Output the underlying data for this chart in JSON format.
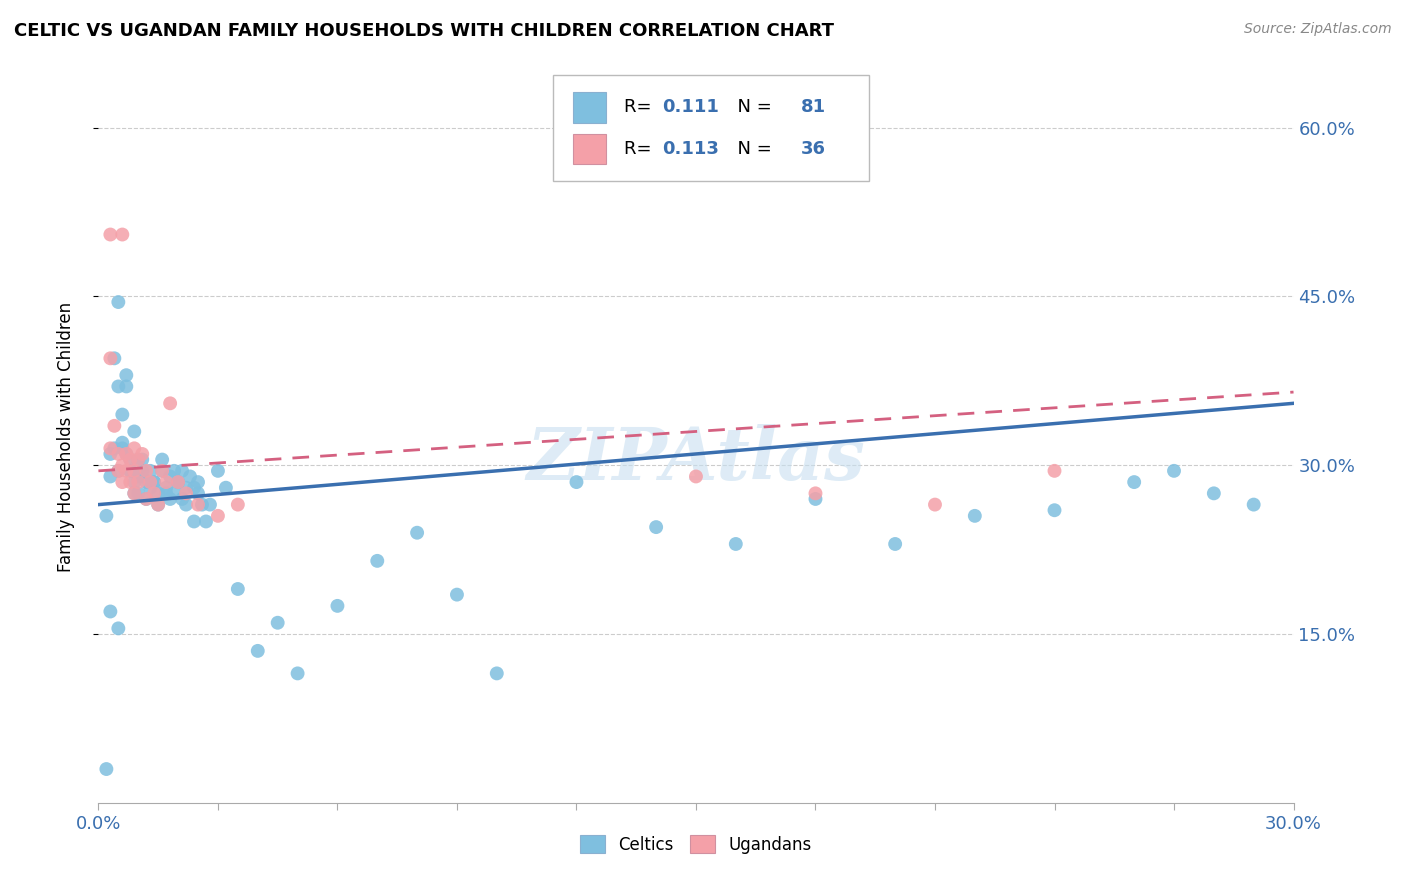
{
  "title": "CELTIC VS UGANDAN FAMILY HOUSEHOLDS WITH CHILDREN CORRELATION CHART",
  "source": "Source: ZipAtlas.com",
  "ylabel": "Family Households with Children",
  "xmin": 0.0,
  "xmax": 0.3,
  "ymin": 0.0,
  "ymax": 0.65,
  "watermark": "ZIPAtlas",
  "celtic_color": "#7fbfdf",
  "ugandan_color": "#f4a0a8",
  "celtic_line_color": "#3a6faf",
  "ugandan_line_color": "#d46080",
  "celtic_R": 0.111,
  "celtic_N": 81,
  "ugandan_R": 0.113,
  "ugandan_N": 36,
  "celtic_line_x0": 0.0,
  "celtic_line_x1": 0.3,
  "celtic_line_y0": 0.265,
  "celtic_line_y1": 0.355,
  "ugandan_line_x0": 0.0,
  "ugandan_line_x1": 0.3,
  "ugandan_line_y0": 0.295,
  "ugandan_line_y1": 0.365,
  "celtic_points_x": [
    0.002,
    0.005,
    0.007,
    0.004,
    0.003,
    0.003,
    0.005,
    0.006,
    0.007,
    0.008,
    0.004,
    0.006,
    0.005,
    0.007,
    0.006,
    0.008,
    0.009,
    0.008,
    0.009,
    0.01,
    0.009,
    0.01,
    0.011,
    0.01,
    0.011,
    0.012,
    0.011,
    0.013,
    0.012,
    0.014,
    0.013,
    0.015,
    0.014,
    0.015,
    0.016,
    0.017,
    0.016,
    0.018,
    0.017,
    0.019,
    0.018,
    0.02,
    0.019,
    0.021,
    0.02,
    0.022,
    0.021,
    0.023,
    0.022,
    0.024,
    0.025,
    0.026,
    0.024,
    0.025,
    0.027,
    0.028,
    0.03,
    0.032,
    0.035,
    0.04,
    0.045,
    0.05,
    0.06,
    0.07,
    0.08,
    0.09,
    0.1,
    0.12,
    0.14,
    0.16,
    0.18,
    0.2,
    0.22,
    0.24,
    0.26,
    0.27,
    0.28,
    0.29,
    0.005,
    0.003,
    0.002
  ],
  "celtic_points_y": [
    0.03,
    0.445,
    0.37,
    0.315,
    0.31,
    0.29,
    0.295,
    0.315,
    0.38,
    0.295,
    0.395,
    0.32,
    0.37,
    0.31,
    0.345,
    0.305,
    0.33,
    0.295,
    0.285,
    0.305,
    0.275,
    0.29,
    0.305,
    0.275,
    0.29,
    0.285,
    0.295,
    0.28,
    0.27,
    0.285,
    0.295,
    0.275,
    0.285,
    0.265,
    0.295,
    0.28,
    0.305,
    0.29,
    0.275,
    0.295,
    0.27,
    0.285,
    0.275,
    0.295,
    0.285,
    0.28,
    0.27,
    0.29,
    0.265,
    0.28,
    0.275,
    0.265,
    0.25,
    0.285,
    0.25,
    0.265,
    0.295,
    0.28,
    0.19,
    0.135,
    0.16,
    0.115,
    0.175,
    0.215,
    0.24,
    0.185,
    0.115,
    0.285,
    0.245,
    0.23,
    0.27,
    0.23,
    0.255,
    0.26,
    0.285,
    0.295,
    0.275,
    0.265,
    0.155,
    0.17,
    0.255
  ],
  "ugandan_points_x": [
    0.003,
    0.003,
    0.004,
    0.005,
    0.005,
    0.006,
    0.006,
    0.007,
    0.007,
    0.008,
    0.008,
    0.009,
    0.009,
    0.01,
    0.01,
    0.011,
    0.012,
    0.013,
    0.014,
    0.015,
    0.016,
    0.017,
    0.018,
    0.02,
    0.022,
    0.025,
    0.03,
    0.035,
    0.15,
    0.18,
    0.21,
    0.24,
    0.003,
    0.006,
    0.009,
    0.012
  ],
  "ugandan_points_y": [
    0.395,
    0.315,
    0.335,
    0.295,
    0.31,
    0.3,
    0.285,
    0.31,
    0.295,
    0.305,
    0.285,
    0.315,
    0.295,
    0.305,
    0.285,
    0.31,
    0.295,
    0.285,
    0.275,
    0.265,
    0.295,
    0.285,
    0.355,
    0.285,
    0.275,
    0.265,
    0.255,
    0.265,
    0.29,
    0.275,
    0.265,
    0.295,
    0.505,
    0.505,
    0.275,
    0.27
  ]
}
